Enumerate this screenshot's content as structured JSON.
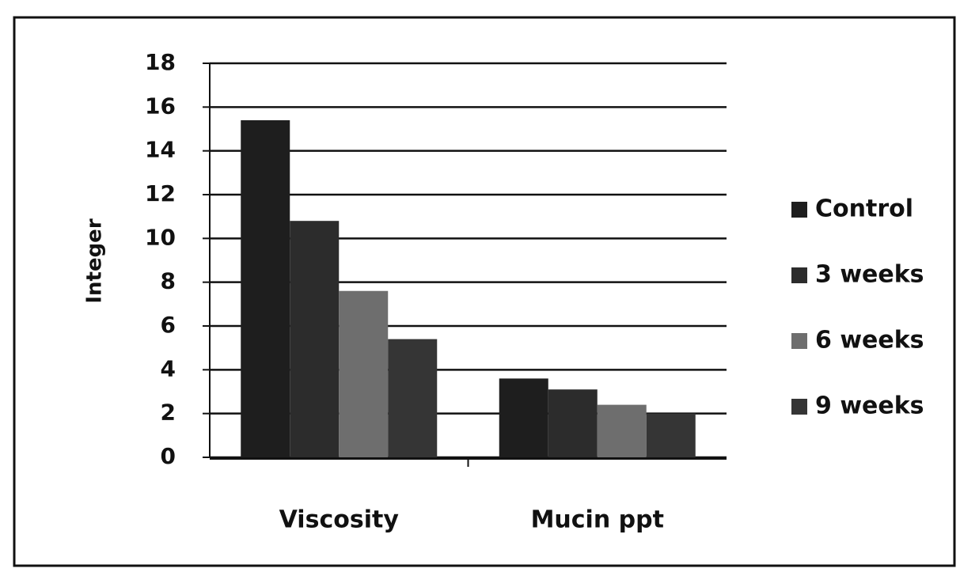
{
  "chart_data": {
    "type": "bar",
    "categories": [
      "Viscosity",
      "Mucin ppt"
    ],
    "series": [
      {
        "name": "Control",
        "color": "#1e1e1e",
        "values": [
          15.4,
          3.6
        ]
      },
      {
        "name": "3 weeks",
        "color": "#2c2c2c",
        "values": [
          10.8,
          3.1
        ]
      },
      {
        "name": "6 weeks",
        "color": "#6e6e6e",
        "values": [
          7.6,
          2.4
        ]
      },
      {
        "name": "9 weeks",
        "color": "#353535",
        "values": [
          5.4,
          2.0
        ]
      }
    ],
    "y_label": "Integer",
    "ylim": [
      0,
      18
    ],
    "yticks": [
      0,
      2,
      4,
      6,
      8,
      10,
      12,
      14,
      16,
      18
    ],
    "grid": true,
    "legend": "right"
  }
}
